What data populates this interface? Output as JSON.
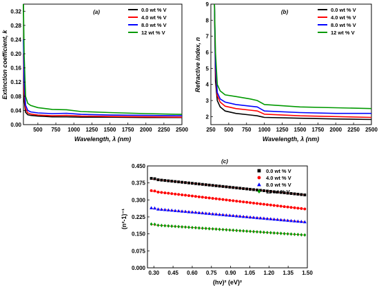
{
  "figure": {
    "panels": [
      {
        "label": "(a)",
        "legend_position": "top-right",
        "chart_data": {
          "type": "line",
          "xlabel": "Wavelength, λ (nm)",
          "ylabel": "Extinction coefficient, k",
          "xlim": [
            300,
            2500
          ],
          "ylim": [
            0,
            0.34
          ],
          "xticks": [
            500,
            750,
            1000,
            1250,
            1500,
            1750,
            2000,
            2250,
            2500
          ],
          "yticks": [
            0.0,
            0.04,
            0.08,
            0.12,
            0.16,
            0.2,
            0.24,
            0.28,
            0.32
          ],
          "series": [
            {
              "name": "0.0 wt % V",
              "color": "#000000",
              "x": [
                300,
                310,
                330,
                360,
                400,
                500,
                700,
                900,
                1100,
                1500,
                2000,
                2500
              ],
              "y": [
                0.34,
                0.07,
                0.035,
                0.028,
                0.026,
                0.024,
                0.022,
                0.022,
                0.021,
                0.021,
                0.02,
                0.02
              ]
            },
            {
              "name": "4.0 wt % V",
              "color": "#ff0000",
              "x": [
                300,
                310,
                330,
                360,
                400,
                500,
                700,
                900,
                1100,
                1500,
                2000,
                2500
              ],
              "y": [
                0.2,
                0.09,
                0.045,
                0.033,
                0.03,
                0.027,
                0.025,
                0.026,
                0.024,
                0.023,
                0.022,
                0.021
              ]
            },
            {
              "name": "8.0 wt % V",
              "color": "#0000ff",
              "x": [
                300,
                310,
                330,
                360,
                400,
                500,
                700,
                900,
                1100,
                1500,
                2000,
                2500
              ],
              "y": [
                0.24,
                0.12,
                0.055,
                0.04,
                0.036,
                0.033,
                0.031,
                0.032,
                0.029,
                0.027,
                0.026,
                0.025
              ]
            },
            {
              "name": "12 wt % V",
              "color": "#009900",
              "x": [
                300,
                310,
                330,
                360,
                400,
                500,
                700,
                900,
                1100,
                1500,
                2000,
                2500
              ],
              "y": [
                0.34,
                0.2,
                0.08,
                0.06,
                0.054,
                0.048,
                0.043,
                0.042,
                0.037,
                0.034,
                0.031,
                0.029
              ]
            }
          ]
        }
      },
      {
        "label": "(b)",
        "legend_position": "top-right",
        "chart_data": {
          "type": "line",
          "xlabel": "Wavelength, λ (nm)",
          "ylabel": "Refractive index, n",
          "xlim": [
            250,
            2500
          ],
          "ylim": [
            1.5,
            9
          ],
          "xticks": [
            250,
            500,
            750,
            1000,
            1250,
            1500,
            1750,
            2000,
            2250,
            2500
          ],
          "yticks": [
            2,
            3,
            4,
            5,
            6,
            7,
            8,
            9
          ],
          "series": [
            {
              "name": "0.0 wt % V",
              "color": "#000000",
              "x": [
                300,
                315,
                340,
                380,
                450,
                600,
                800,
                900,
                1000,
                1500,
                2000,
                2500
              ],
              "y": [
                9.0,
                4.2,
                3.0,
                2.6,
                2.35,
                2.2,
                2.1,
                2.05,
                1.95,
                1.9,
                1.85,
                1.82
              ]
            },
            {
              "name": "4.0 wt % V",
              "color": "#ff0000",
              "x": [
                300,
                315,
                340,
                380,
                450,
                600,
                800,
                900,
                1000,
                1500,
                2000,
                2500
              ],
              "y": [
                9.0,
                4.8,
                3.3,
                2.9,
                2.65,
                2.5,
                2.4,
                2.35,
                2.15,
                2.05,
                2.0,
                1.95
              ]
            },
            {
              "name": "8.0 wt % V",
              "color": "#0000ff",
              "x": [
                300,
                315,
                340,
                380,
                450,
                600,
                800,
                900,
                1000,
                1500,
                2000,
                2500
              ],
              "y": [
                9.0,
                5.2,
                3.5,
                3.1,
                2.9,
                2.75,
                2.65,
                2.6,
                2.35,
                2.25,
                2.2,
                2.2
              ]
            },
            {
              "name": "12 wt % V",
              "color": "#009900",
              "x": [
                300,
                315,
                340,
                380,
                450,
                600,
                800,
                900,
                1000,
                1500,
                2000,
                2500
              ],
              "y": [
                9.0,
                6.0,
                4.0,
                3.6,
                3.35,
                3.25,
                3.1,
                3.0,
                2.75,
                2.6,
                2.55,
                2.5
              ]
            }
          ]
        }
      },
      {
        "label": "(c)",
        "legend_position": "top-right",
        "chart_data": {
          "type": "scatter",
          "xlabel": "(hν)² (eV)²",
          "ylabel": "(n²-1)⁻¹",
          "xlim": [
            0.25,
            1.5
          ],
          "ylim": [
            0.0,
            0.45
          ],
          "xticks": [
            "0.30",
            "0.45",
            "0.60",
            "0.75",
            "0.90",
            "1.05",
            "1.20",
            "1.35",
            "1.50"
          ],
          "yticks": [
            "0.000",
            "0.075",
            "0.150",
            "0.225",
            "0.300",
            "0.375",
            "0.450"
          ],
          "x_range": [
            0.28,
            1.48
          ],
          "series": [
            {
              "name": "0.0 wt % V",
              "color": "#000000",
              "marker": "square",
              "y_start": 0.392,
              "y_end": 0.322
            },
            {
              "name": "4.0 wt % V",
              "color": "#ff0000",
              "marker": "circle",
              "y_start": 0.338,
              "y_end": 0.26
            },
            {
              "name": "8.0 wt % V",
              "color": "#0000ff",
              "marker": "triangle",
              "y_start": 0.262,
              "y_end": 0.203
            },
            {
              "name": "12 wt % V",
              "color": "#009900",
              "marker": "diamond",
              "y_start": 0.19,
              "y_end": 0.145
            }
          ]
        }
      }
    ]
  }
}
